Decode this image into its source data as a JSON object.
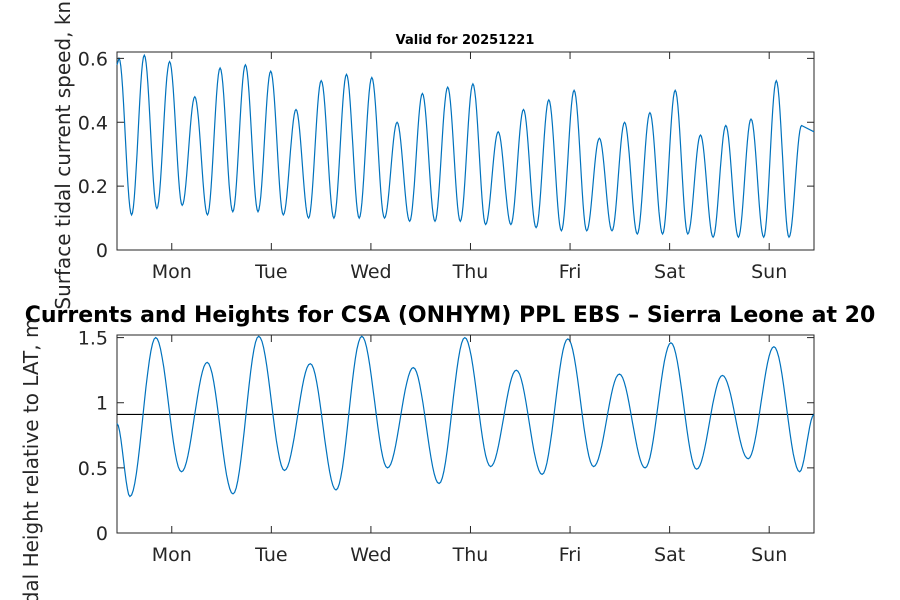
{
  "chart_data": [
    {
      "type": "line",
      "title": "Valid for 20251221",
      "xlabel": "",
      "ylabel": "Surface tidal current speed, knots",
      "x_tick_labels": [
        "Mon",
        "Tue",
        "Wed",
        "Thu",
        "Fri",
        "Sat",
        "Sun"
      ],
      "x_tick_positions_days": [
        0.55,
        1.55,
        2.55,
        3.55,
        4.55,
        5.55,
        6.55
      ],
      "xlim_days": [
        0,
        7
      ],
      "ylim": [
        0,
        0.62
      ],
      "y_ticks": [
        0,
        0.2,
        0.4,
        0.6
      ],
      "y_tick_labels": [
        "0",
        "0.2",
        "0.4",
        "0.6"
      ],
      "series": [
        {
          "name": "current speed",
          "color": "#0072bd",
          "peaks": [
            0.6,
            0.61,
            0.59,
            0.48,
            0.57,
            0.58,
            0.56,
            0.44,
            0.53,
            0.55,
            0.54,
            0.4,
            0.49,
            0.51,
            0.52,
            0.37,
            0.44,
            0.47,
            0.5,
            0.35,
            0.4,
            0.43,
            0.5,
            0.36,
            0.39,
            0.41,
            0.53,
            0.39
          ],
          "troughs": [
            0.11,
            0.13,
            0.14,
            0.11,
            0.12,
            0.12,
            0.11,
            0.1,
            0.1,
            0.1,
            0.1,
            0.09,
            0.09,
            0.09,
            0.08,
            0.08,
            0.07,
            0.06,
            0.06,
            0.06,
            0.05,
            0.05,
            0.05,
            0.04,
            0.04,
            0.04,
            0.04
          ]
        }
      ]
    },
    {
      "type": "line",
      "title": "Currents and Heights for CSA (ONHYM) PPL EBS  – Sierra Leone at 20",
      "xlabel": "",
      "ylabel": "Tidal Height relative to LAT, m",
      "x_tick_labels": [
        "Mon",
        "Tue",
        "Wed",
        "Thu",
        "Fri",
        "Sat",
        "Sun"
      ],
      "x_tick_positions_days": [
        0.55,
        1.55,
        2.55,
        3.55,
        4.55,
        5.55,
        6.55
      ],
      "xlim_days": [
        0,
        7
      ],
      "ylim": [
        0,
        1.52
      ],
      "y_ticks": [
        0,
        0.5,
        1,
        1.5
      ],
      "y_tick_labels": [
        "0",
        "0.5",
        "1",
        "1.5"
      ],
      "reference_line": 0.91,
      "series": [
        {
          "name": "tidal height",
          "color": "#0072bd",
          "start_value": 0.84,
          "high_waters": [
            1.5,
            1.31,
            1.51,
            1.3,
            1.51,
            1.27,
            1.5,
            1.25,
            1.49,
            1.22,
            1.46,
            1.21,
            1.43
          ],
          "low_waters": [
            0.28,
            0.47,
            0.3,
            0.48,
            0.33,
            0.5,
            0.38,
            0.51,
            0.45,
            0.51,
            0.5,
            0.49,
            0.57,
            0.47
          ],
          "end_value": 0.91
        }
      ]
    }
  ]
}
